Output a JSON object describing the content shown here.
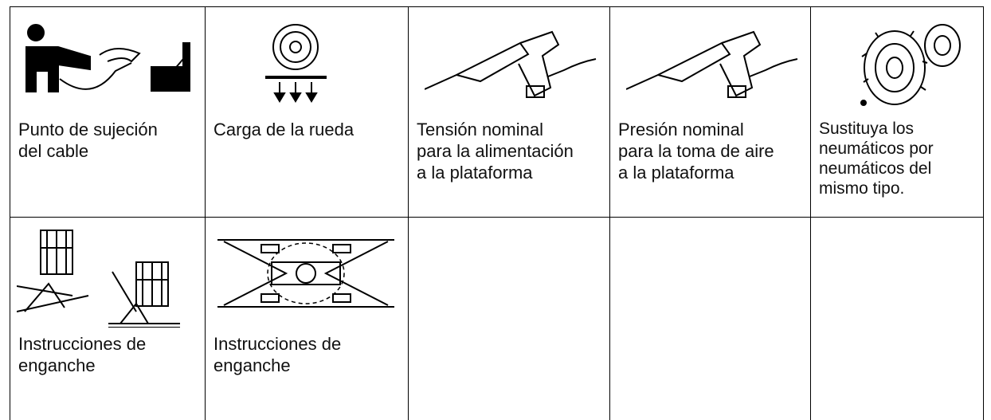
{
  "table": {
    "rows": [
      [
        [
          "Punto de sujeción",
          "del cable"
        ],
        [
          "Carga de la rueda"
        ],
        [
          "Tensión nominal",
          "para la alimentación",
          "a la plataforma"
        ],
        [
          "Presión nominal",
          "para la toma de aire",
          "a la plataforma"
        ],
        [
          "Sustituya los",
          "neumáticos por",
          "neumáticos del",
          "mismo tipo."
        ]
      ],
      [
        [
          "Instrucciones de",
          "enganche"
        ],
        [
          "Instrucciones de",
          "enganche"
        ]
      ]
    ]
  }
}
